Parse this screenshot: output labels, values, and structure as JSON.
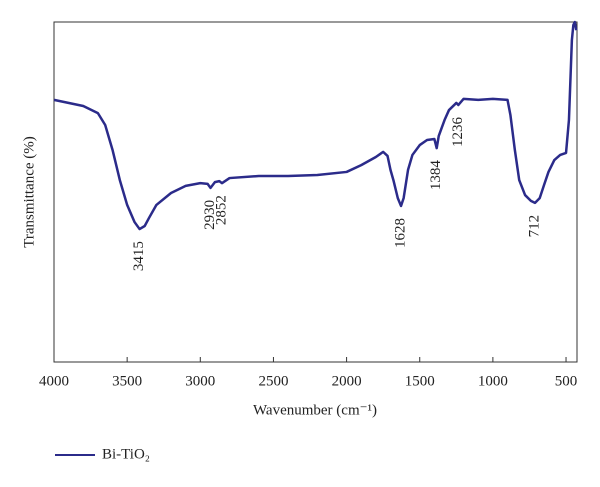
{
  "chart_data": {
    "type": "line",
    "xlabel": "Wavenumber (cm⁻¹)",
    "ylabel": "Transmittance (%)",
    "xlim": [
      4000,
      425
    ],
    "ylim": [
      0,
      100
    ],
    "xticks": [
      4000,
      3500,
      3000,
      2500,
      2000,
      1500,
      1000,
      500
    ],
    "legend": "bottom-left",
    "x": [
      4000,
      3800,
      3700,
      3650,
      3600,
      3550,
      3500,
      3450,
      3415,
      3380,
      3350,
      3300,
      3200,
      3100,
      3000,
      2950,
      2930,
      2900,
      2870,
      2852,
      2800,
      2600,
      2400,
      2200,
      2000,
      1900,
      1800,
      1750,
      1720,
      1700,
      1680,
      1650,
      1628,
      1610,
      1580,
      1550,
      1500,
      1450,
      1400,
      1384,
      1370,
      1330,
      1300,
      1250,
      1236,
      1200,
      1100,
      1000,
      900,
      880,
      850,
      820,
      780,
      740,
      712,
      680,
      650,
      620,
      580,
      540,
      500,
      480,
      460,
      450,
      440,
      430
    ],
    "series": [
      {
        "name": "Bi-TiO₂",
        "color": "#2b2b8a",
        "values": [
          77.1,
          75.3,
          73.2,
          69.7,
          62.4,
          53.5,
          46.2,
          41.2,
          39.1,
          40,
          42.4,
          46.2,
          49.7,
          51.8,
          52.6,
          52.4,
          51.2,
          52.9,
          53.2,
          52.6,
          54.1,
          54.7,
          54.7,
          55,
          55.9,
          57.9,
          60.3,
          61.8,
          60.6,
          56.5,
          53.5,
          48.2,
          45.9,
          48.2,
          56.5,
          60.9,
          63.8,
          65.3,
          65.6,
          62.9,
          66.5,
          71.2,
          74.1,
          76.2,
          75.6,
          77.4,
          77.1,
          77.4,
          77.1,
          72.6,
          62.4,
          53.5,
          49.1,
          47.4,
          46.8,
          48.2,
          52.1,
          55.9,
          59.4,
          60.9,
          61.5,
          71.2,
          94.7,
          99.1,
          100,
          97.6
        ]
      }
    ],
    "annotations": [
      {
        "text": "3415",
        "x": 3415
      },
      {
        "text": "2930",
        "x": 2930
      },
      {
        "text": "2852",
        "x": 2852
      },
      {
        "text": "1628",
        "x": 1628
      },
      {
        "text": "1384",
        "x": 1384
      },
      {
        "text": "1236",
        "x": 1236
      },
      {
        "text": "712",
        "x": 712
      }
    ]
  }
}
